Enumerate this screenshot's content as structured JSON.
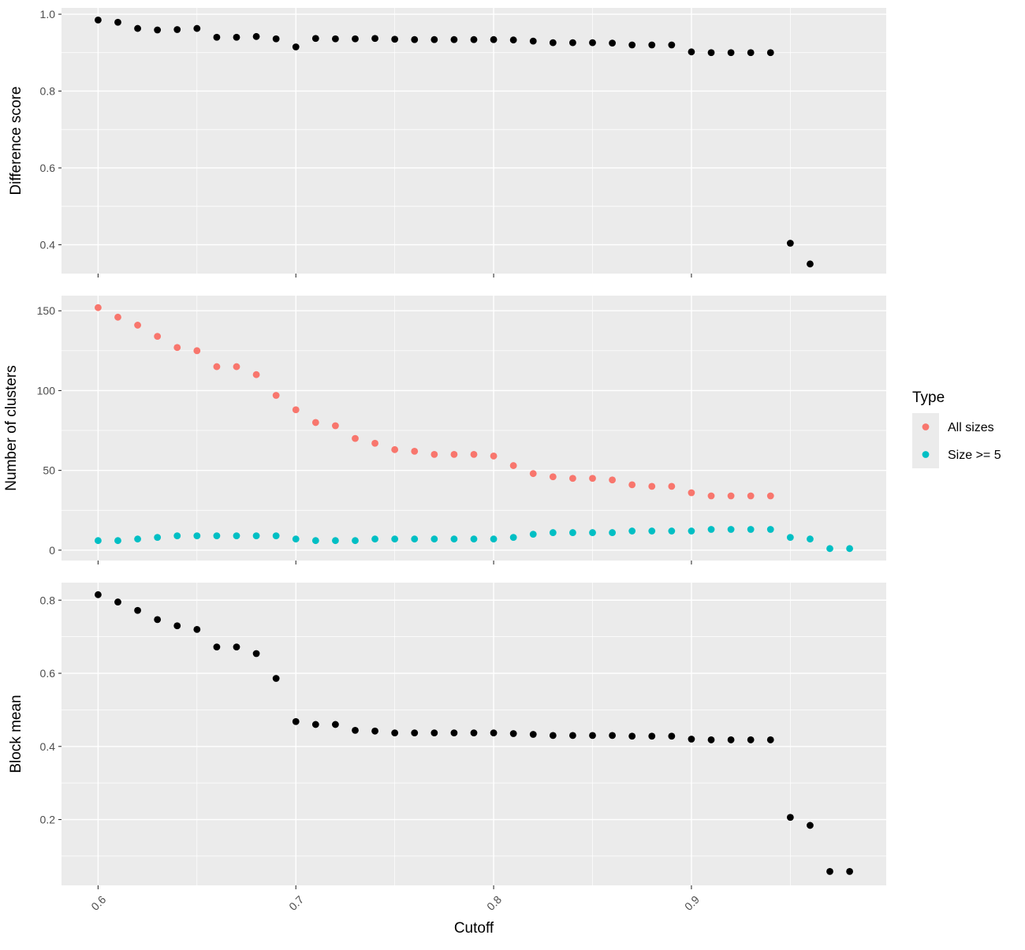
{
  "chart_data": {
    "type": "scatter",
    "xlabel": "Cutoff",
    "xlim": [
      0.5815,
      0.9985
    ],
    "x_ticks": [
      0.6,
      0.7,
      0.8,
      0.9
    ],
    "x_tick_labels": [
      "0.6",
      "0.7",
      "0.8",
      "0.9"
    ],
    "grid": true,
    "legend": {
      "title": "Type",
      "placement": "right",
      "entries": [
        {
          "label": "All sizes",
          "color": "#F8766D"
        },
        {
          "label": "Size >= 5",
          "color": "#00BFC4"
        }
      ]
    },
    "panels": [
      {
        "ylabel": "Difference score",
        "ylim": [
          0.325,
          1.0165
        ],
        "y_ticks": [
          0.4,
          0.6,
          0.8,
          1.0
        ],
        "y_tick_labels": [
          "0.4",
          "0.6",
          "0.8",
          "1.0"
        ],
        "series": [
          {
            "color": "#000000",
            "x": [
              0.6,
              0.61,
              0.62,
              0.63,
              0.64,
              0.65,
              0.66,
              0.67,
              0.68,
              0.69,
              0.7,
              0.71,
              0.72,
              0.73,
              0.74,
              0.75,
              0.76,
              0.77,
              0.78,
              0.79,
              0.8,
              0.81,
              0.82,
              0.83,
              0.84,
              0.85,
              0.86,
              0.87,
              0.88,
              0.89,
              0.9,
              0.91,
              0.92,
              0.93,
              0.94,
              0.95,
              0.96
            ],
            "y": [
              0.985,
              0.979,
              0.963,
              0.959,
              0.96,
              0.963,
              0.94,
              0.94,
              0.942,
              0.936,
              0.915,
              0.937,
              0.936,
              0.936,
              0.937,
              0.935,
              0.934,
              0.934,
              0.934,
              0.934,
              0.934,
              0.933,
              0.93,
              0.926,
              0.926,
              0.926,
              0.925,
              0.92,
              0.92,
              0.92,
              0.902,
              0.9,
              0.9,
              0.9,
              0.9,
              0.404,
              0.35
            ]
          }
        ]
      },
      {
        "ylabel": "Number of clusters",
        "ylim": [
          -6.5,
          159.5
        ],
        "y_ticks": [
          0,
          50,
          100,
          150
        ],
        "y_tick_labels": [
          "0",
          "50",
          "100",
          "150"
        ],
        "series": [
          {
            "name": "All sizes",
            "color": "#F8766D",
            "x": [
              0.6,
              0.61,
              0.62,
              0.63,
              0.64,
              0.65,
              0.66,
              0.67,
              0.68,
              0.69,
              0.7,
              0.71,
              0.72,
              0.73,
              0.74,
              0.75,
              0.76,
              0.77,
              0.78,
              0.79,
              0.8,
              0.81,
              0.82,
              0.83,
              0.84,
              0.85,
              0.86,
              0.87,
              0.88,
              0.89,
              0.9,
              0.91,
              0.92,
              0.93,
              0.94
            ],
            "y": [
              152,
              146,
              141,
              134,
              127,
              125,
              115,
              115,
              110,
              97,
              88,
              80,
              78,
              70,
              67,
              63,
              62,
              60,
              60,
              60,
              59,
              53,
              48,
              46,
              45,
              45,
              44,
              41,
              40,
              40,
              36,
              34,
              34,
              34,
              34
            ]
          },
          {
            "name": "Size >= 5",
            "color": "#00BFC4",
            "x": [
              0.6,
              0.61,
              0.62,
              0.63,
              0.64,
              0.65,
              0.66,
              0.67,
              0.68,
              0.69,
              0.7,
              0.71,
              0.72,
              0.73,
              0.74,
              0.75,
              0.76,
              0.77,
              0.78,
              0.79,
              0.8,
              0.81,
              0.82,
              0.83,
              0.84,
              0.85,
              0.86,
              0.87,
              0.88,
              0.89,
              0.9,
              0.91,
              0.92,
              0.93,
              0.94,
              0.95,
              0.96,
              0.97,
              0.98
            ],
            "y": [
              6,
              6,
              7,
              8,
              9,
              9,
              9,
              9,
              9,
              9,
              7,
              6,
              6,
              6,
              7,
              7,
              7,
              7,
              7,
              7,
              7,
              8,
              10,
              11,
              11,
              11,
              11,
              12,
              12,
              12,
              12,
              13,
              13,
              13,
              13,
              8,
              7,
              1,
              1
            ]
          }
        ]
      },
      {
        "ylabel": "Block mean",
        "ylim": [
          0.02,
          0.848
        ],
        "y_ticks": [
          0.2,
          0.4,
          0.6,
          0.8
        ],
        "y_tick_labels": [
          "0.2",
          "0.4",
          "0.6",
          "0.8"
        ],
        "series": [
          {
            "color": "#000000",
            "x": [
              0.6,
              0.61,
              0.62,
              0.63,
              0.64,
              0.65,
              0.66,
              0.67,
              0.68,
              0.69,
              0.7,
              0.71,
              0.72,
              0.73,
              0.74,
              0.75,
              0.76,
              0.77,
              0.78,
              0.79,
              0.8,
              0.81,
              0.82,
              0.83,
              0.84,
              0.85,
              0.86,
              0.87,
              0.88,
              0.89,
              0.9,
              0.91,
              0.92,
              0.93,
              0.94,
              0.95,
              0.96,
              0.97,
              0.98
            ],
            "y": [
              0.815,
              0.795,
              0.772,
              0.747,
              0.73,
              0.72,
              0.672,
              0.672,
              0.654,
              0.586,
              0.468,
              0.46,
              0.46,
              0.444,
              0.442,
              0.437,
              0.437,
              0.437,
              0.437,
              0.437,
              0.437,
              0.435,
              0.433,
              0.43,
              0.43,
              0.43,
              0.43,
              0.428,
              0.428,
              0.428,
              0.42,
              0.418,
              0.418,
              0.418,
              0.418,
              0.206,
              0.184,
              0.058,
              0.058
            ]
          }
        ]
      }
    ]
  }
}
